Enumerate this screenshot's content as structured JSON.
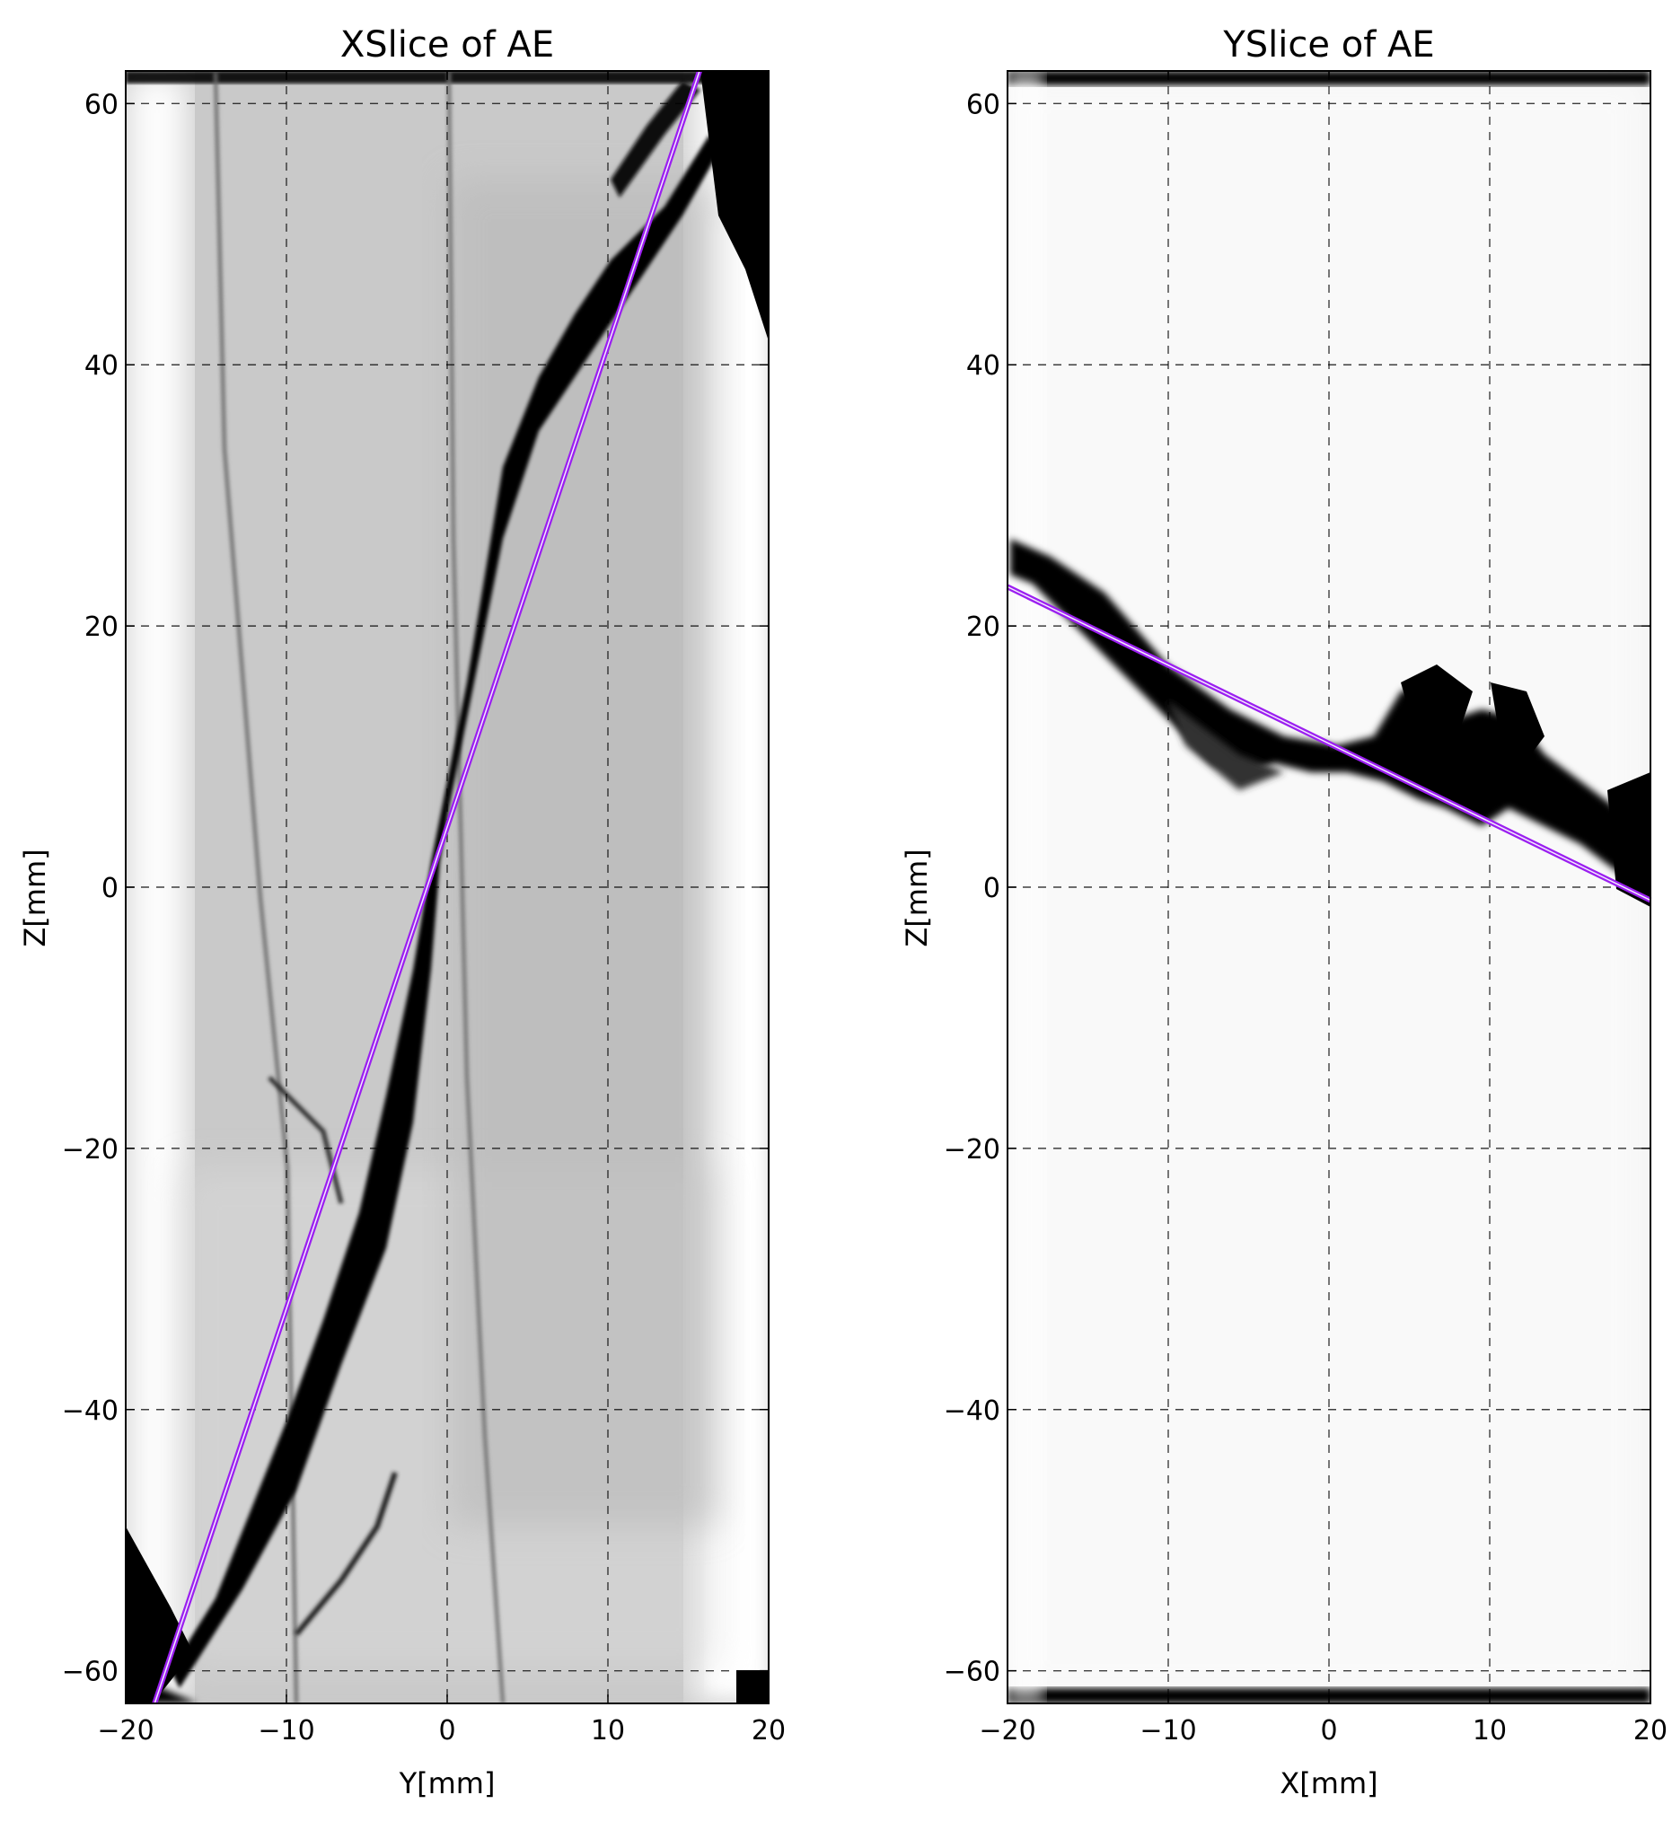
{
  "chart_data": [
    {
      "type": "heatmap",
      "title": "XSlice of AE",
      "xlabel": "Y[mm]",
      "ylabel": "Z[mm]",
      "xlim": [
        -20,
        20
      ],
      "ylim": [
        -62.5,
        62.5
      ],
      "xticks": [
        -20,
        -10,
        0,
        10,
        20
      ],
      "yticks": [
        -60,
        -40,
        -20,
        0,
        20,
        40,
        60
      ],
      "xticklabels": [
        "−20",
        "−10",
        "0",
        "10",
        "20"
      ],
      "yticklabels": [
        "−60",
        "−40",
        "−20",
        "0",
        "20",
        "40",
        "60"
      ],
      "grid": true,
      "colormap": "gray_r",
      "fit_line": {
        "color": "#9b1ff0",
        "x": [
          -18.2,
          15.7
        ],
        "y": [
          -62.5,
          62.5
        ]
      },
      "features": [
        {
          "name": "main-crack",
          "points": [
            [
              -17,
              -60
            ],
            [
              -12,
              -52
            ],
            [
              -8,
              -42
            ],
            [
              -4,
              -30
            ],
            [
              -1,
              -15
            ],
            [
              0,
              0
            ],
            [
              1,
              10
            ],
            [
              3,
              25
            ],
            [
              6,
              38
            ],
            [
              10,
              45
            ],
            [
              15,
              56
            ],
            [
              19,
              60
            ]
          ]
        }
      ]
    },
    {
      "type": "heatmap",
      "title": "YSlice of AE",
      "xlabel": "X[mm]",
      "ylabel": "Z[mm]",
      "xlim": [
        -20,
        20
      ],
      "ylim": [
        -62.5,
        62.5
      ],
      "xticks": [
        -20,
        -10,
        0,
        10,
        20
      ],
      "yticks": [
        -60,
        -40,
        -20,
        0,
        20,
        40,
        60
      ],
      "xticklabels": [
        "−20",
        "−10",
        "0",
        "10",
        "20"
      ],
      "yticklabels": [
        "−60",
        "−40",
        "−20",
        "0",
        "20",
        "40",
        "60"
      ],
      "grid": true,
      "colormap": "gray_r",
      "fit_line": {
        "color": "#9b1ff0",
        "x": [
          -20,
          20
        ],
        "y": [
          23,
          -1
        ]
      },
      "features": [
        {
          "name": "main-crack",
          "points": [
            [
              -19,
              26
            ],
            [
              -15,
              23
            ],
            [
              -10,
              18
            ],
            [
              -5,
              12
            ],
            [
              0,
              12
            ],
            [
              5,
              14
            ],
            [
              8,
              13
            ],
            [
              11,
              12
            ],
            [
              14,
              9
            ],
            [
              17,
              7
            ],
            [
              20,
              5
            ]
          ]
        }
      ]
    }
  ]
}
